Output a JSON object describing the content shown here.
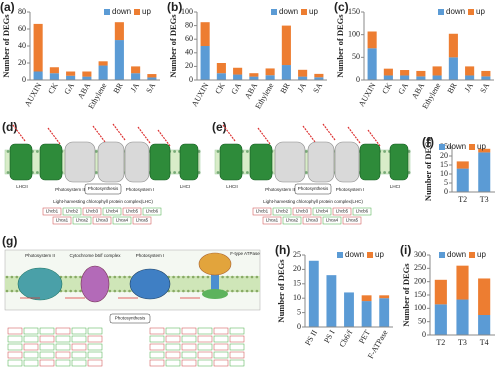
{
  "chart_data": [
    {
      "type": "bar",
      "stacked": true,
      "label": "(a)",
      "ylabel": "Number of DEGs",
      "categories": [
        "AUXIN",
        "CK",
        "GA",
        "ABA",
        "Ethylene",
        "BR",
        "JA",
        "SA"
      ],
      "series": [
        {
          "name": "down",
          "color": "#5b9bd5",
          "values": [
            10,
            8,
            5,
            4,
            17,
            47,
            8,
            3
          ]
        },
        {
          "name": "up",
          "color": "#ed7d31",
          "values": [
            56,
            7,
            5,
            6,
            5,
            21,
            8,
            4
          ]
        }
      ],
      "ylim": [
        0,
        80
      ],
      "yticks": [
        0,
        20,
        40,
        60,
        80
      ]
    },
    {
      "type": "bar",
      "stacked": true,
      "label": "(b)",
      "ylabel": "Number of DEGs",
      "categories": [
        "AUXIN",
        "CK",
        "GA",
        "ABA",
        "Ethylene",
        "BR",
        "JA",
        "SA"
      ],
      "series": [
        {
          "name": "down",
          "color": "#5b9bd5",
          "values": [
            50,
            10,
            8,
            5,
            7,
            22,
            5,
            4
          ]
        },
        {
          "name": "up",
          "color": "#ed7d31",
          "values": [
            35,
            15,
            10,
            5,
            10,
            58,
            10,
            5
          ]
        }
      ],
      "ylim": [
        0,
        100
      ],
      "yticks": [
        0,
        20,
        40,
        60,
        80,
        100
      ]
    },
    {
      "type": "bar",
      "stacked": true,
      "label": "(c)",
      "ylabel": "Number of DEGs",
      "categories": [
        "AUXIN",
        "CK",
        "GA",
        "ABA",
        "Ethylene",
        "BR",
        "JA",
        "SA"
      ],
      "series": [
        {
          "name": "down",
          "color": "#5b9bd5",
          "values": [
            70,
            10,
            10,
            8,
            10,
            50,
            10,
            8
          ]
        },
        {
          "name": "up",
          "color": "#ed7d31",
          "values": [
            37,
            15,
            12,
            12,
            20,
            52,
            20,
            12
          ]
        }
      ],
      "ylim": [
        0,
        150
      ],
      "yticks": [
        0,
        50,
        100,
        150
      ]
    },
    {
      "type": "bar",
      "stacked": true,
      "label": "(f)",
      "ylabel": "Number of DEGs",
      "categories": [
        "T2",
        "T3"
      ],
      "series": [
        {
          "name": "down",
          "color": "#5b9bd5",
          "values": [
            13,
            22
          ]
        },
        {
          "name": "up",
          "color": "#ed7d31",
          "values": [
            4,
            2
          ]
        }
      ],
      "ylim": [
        0,
        25
      ],
      "yticks": [
        0,
        5,
        10,
        15,
        20,
        25
      ]
    },
    {
      "type": "bar",
      "stacked": true,
      "label": "(h)",
      "ylabel": "Number of DEGs",
      "categories": [
        "PS II",
        "PS I",
        "Cb6/f",
        "PET",
        "F-ATPase"
      ],
      "series": [
        {
          "name": "down",
          "color": "#5b9bd5",
          "values": [
            23,
            18,
            12,
            9,
            10
          ]
        },
        {
          "name": "up",
          "color": "#ed7d31",
          "values": [
            0,
            0,
            0,
            2,
            1
          ]
        }
      ],
      "ylim": [
        0,
        25
      ],
      "yticks": [
        0,
        5,
        10,
        15,
        20,
        25
      ]
    },
    {
      "type": "bar",
      "stacked": true,
      "label": "(i)",
      "ylabel": "Number of DEGs",
      "categories": [
        "T2",
        "T3",
        "T4"
      ],
      "series": [
        {
          "name": "down",
          "color": "#5b9bd5",
          "values": [
            115,
            133,
            75
          ]
        },
        {
          "name": "up",
          "color": "#ed7d31",
          "values": [
            92,
            127,
            137
          ]
        }
      ],
      "ylim": [
        0,
        300
      ],
      "yticks": [
        0,
        50,
        100,
        150,
        200,
        250,
        300
      ]
    }
  ],
  "diagrams": {
    "d": {
      "label": "(d)",
      "lhc_left": "LHCII",
      "ps2": "Photosystem II",
      "center": "Photosynthesis",
      "ps1": "Photosystem I",
      "lhc_right": "LHCI",
      "caption": "Light-harvesting chlorophyll protein complex(LHC)",
      "genes_row1": [
        "Lhcb1",
        "Lhcb2",
        "Lhcb3",
        "Lhcb4",
        "Lhcb5",
        "Lhcb6"
      ],
      "genes_row2": [
        "Lhca1",
        "Lhca2",
        "Lhca3",
        "Lhca4",
        "Lhca5"
      ]
    },
    "e": {
      "label": "(e)",
      "lhc_left": "LHCII",
      "ps2": "Photosystem II",
      "center": "Photosynthesis",
      "ps1": "Photosystem I",
      "lhc_right": "LHCI",
      "caption": "Light-harvesting chlorophyll protein complex(LHC)",
      "genes_row1": [
        "Lhcb1",
        "Lhcb2",
        "Lhcb3",
        "Lhcb4",
        "Lhcb5",
        "Lhcb6"
      ],
      "genes_row2": [
        "Lhca1",
        "Lhca2",
        "Lhca3",
        "Lhca4",
        "Lhca5"
      ]
    },
    "g": {
      "label": "(g)",
      "ps2": "Photosystem II",
      "cyt": "Cytochrome b6/f complex",
      "ps1": "Photosystem I",
      "atp": "F-type ATPase",
      "center": "Photosynthesis"
    }
  }
}
